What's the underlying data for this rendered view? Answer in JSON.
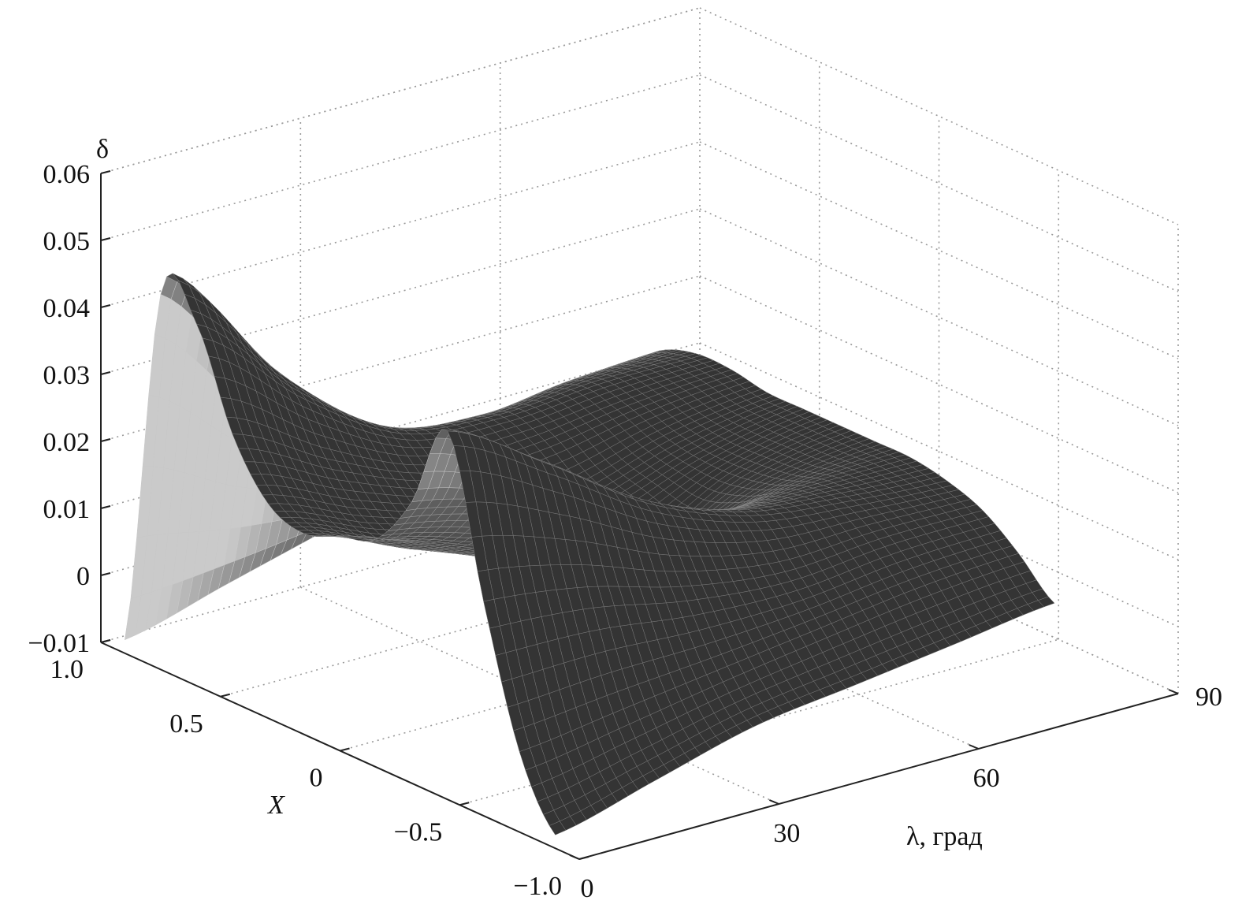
{
  "chart_data": {
    "type": "surface3d",
    "title": "",
    "zlabel": "δ",
    "xlabel": "X",
    "ylabel": "λ, град",
    "z_ticks": [
      "0.06",
      "0.05",
      "0.04",
      "0.03",
      "0.02",
      "0.01",
      "0",
      "−0.01"
    ],
    "z_tick_values": [
      0.06,
      0.05,
      0.04,
      0.03,
      0.02,
      0.01,
      0,
      -0.01
    ],
    "x_ticks": [
      "1.0",
      "0.5",
      "0",
      "−0.5",
      "−1.0"
    ],
    "x_tick_values": [
      1,
      0.5,
      0,
      -0.5,
      -1
    ],
    "lambda_ticks": [
      "0",
      "30",
      "60",
      "90"
    ],
    "lambda_tick_values": [
      0,
      30,
      60,
      90
    ],
    "xlim": [
      -1,
      1
    ],
    "lambda_lim": [
      0,
      90
    ],
    "zlim": [
      -0.01,
      0.06
    ],
    "grid": true,
    "surface": {
      "X": [
        -0.9,
        -0.75,
        -0.6,
        -0.45,
        -0.3,
        -0.15,
        0,
        0.15,
        0.3,
        0.45,
        0.6,
        0.75,
        0.9
      ],
      "lambda": [
        0,
        15,
        30,
        45,
        60,
        75
      ],
      "delta": [
        [
          -0.008,
          0.002,
          0.022,
          0.045,
          0.032,
          0.024,
          0.022,
          0.02,
          0.022,
          0.03,
          0.044,
          0.046,
          -0.008
        ],
        [
          -0.004,
          0.004,
          0.02,
          0.036,
          0.028,
          0.02,
          0.016,
          0.014,
          0.016,
          0.022,
          0.03,
          0.028,
          -0.004
        ],
        [
          0.0,
          0.006,
          0.016,
          0.026,
          0.022,
          0.014,
          0.01,
          0.01,
          0.012,
          0.016,
          0.02,
          0.016,
          0.0
        ],
        [
          0.002,
          0.008,
          0.014,
          0.02,
          0.018,
          0.012,
          0.008,
          0.01,
          0.012,
          0.016,
          0.018,
          0.014,
          0.004
        ],
        [
          0.004,
          0.01,
          0.015,
          0.018,
          0.018,
          0.016,
          0.015,
          0.015,
          0.016,
          0.018,
          0.019,
          0.016,
          0.008
        ],
        [
          0.006,
          0.011,
          0.015,
          0.017,
          0.018,
          0.018,
          0.018,
          0.018,
          0.018,
          0.019,
          0.019,
          0.017,
          0.012
        ]
      ]
    },
    "colors": {
      "surface": "#3c3c3c",
      "mesh": "#a8a8a8",
      "grid": "#9a9a9a"
    }
  }
}
